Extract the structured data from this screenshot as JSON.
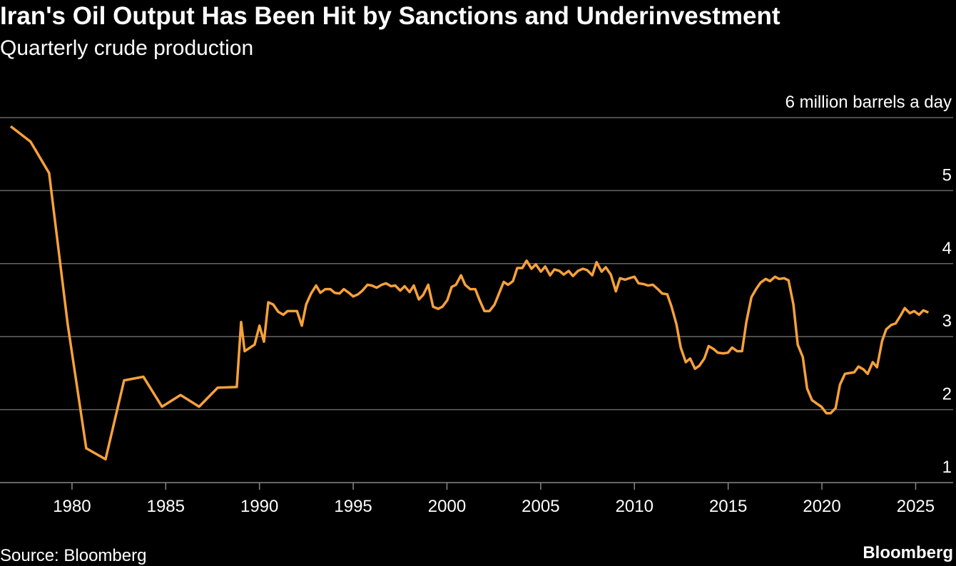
{
  "chart_data": {
    "type": "line",
    "title": "Iran's Oil Output Has Been Hit by Sanctions and Underinvestment",
    "subtitle": "Quarterly crude production",
    "source": "Source: Bloomberg",
    "brand": "Bloomberg",
    "xlim": [
      1976.16,
      2027.0
    ],
    "xticks": [
      1980,
      1985,
      1990,
      1995,
      2000,
      2005,
      2010,
      2015,
      2020,
      2025
    ],
    "ylim": [
      1,
      6
    ],
    "yticks": [
      1,
      2,
      3,
      4,
      {
        "value": 6,
        "label": "6 million barrels a day"
      },
      5
    ],
    "grid": true,
    "series": [
      {
        "name": "Crude production",
        "color": "#f7a13a",
        "x": [
          1976.73,
          1977.79,
          1978.78,
          1979.77,
          1980.76,
          1981.79,
          1982.78,
          1983.81,
          1984.8,
          1985.79,
          1986.78,
          1987.77,
          1988.79,
          1989.02,
          1989.21,
          1989.74,
          1990.0,
          1990.24,
          1990.47,
          1990.73,
          1991.0,
          1991.27,
          1991.5,
          1992.0,
          1992.26,
          1992.49,
          1992.75,
          1993.02,
          1993.25,
          1993.51,
          1993.78,
          1994.01,
          1994.27,
          1994.5,
          1994.77,
          1995.0,
          1995.26,
          1995.49,
          1995.76,
          1995.99,
          1996.25,
          1996.52,
          1996.75,
          1997.02,
          1997.24,
          1997.51,
          1997.74,
          1998.01,
          1998.23,
          1998.5,
          1998.73,
          1999.0,
          1999.26,
          1999.53,
          1999.76,
          2000.02,
          2000.25,
          2000.48,
          2000.75,
          2000.97,
          2001.24,
          2001.51,
          2001.74,
          2002.0,
          2002.27,
          2002.54,
          2002.76,
          2003.03,
          2003.26,
          2003.52,
          2003.75,
          2004.02,
          2004.25,
          2004.51,
          2004.74,
          2005.01,
          2005.24,
          2005.5,
          2005.73,
          2006.0,
          2006.23,
          2006.49,
          2006.72,
          2006.99,
          2007.26,
          2007.48,
          2007.75,
          2007.98,
          2008.25,
          2008.47,
          2008.74,
          2009.01,
          2009.23,
          2009.5,
          2009.73,
          2010.0,
          2010.22,
          2010.49,
          2010.72,
          2010.99,
          2011.25,
          2011.48,
          2011.75,
          2011.98,
          2012.24,
          2012.47,
          2012.74,
          2012.97,
          2013.23,
          2013.46,
          2013.73,
          2013.96,
          2014.22,
          2014.45,
          2014.72,
          2014.99,
          2015.21,
          2015.48,
          2015.74,
          2015.97,
          2016.24,
          2016.51,
          2016.73,
          2017.0,
          2017.23,
          2017.5,
          2017.72,
          2017.99,
          2018.22,
          2018.48,
          2018.71,
          2018.98,
          2019.21,
          2019.47,
          2019.74,
          2019.97,
          2020.24,
          2020.46,
          2020.73,
          2020.96,
          2021.23,
          2021.45,
          2021.72,
          2021.95,
          2022.22,
          2022.44,
          2022.71,
          2022.94,
          2023.21,
          2023.43,
          2023.7,
          2023.93,
          2024.2,
          2024.42,
          2024.69,
          2024.92,
          2025.18,
          2025.41,
          2025.68
        ],
        "values": [
          5.88,
          5.67,
          5.24,
          3.17,
          1.47,
          1.32,
          2.4,
          2.45,
          2.04,
          2.2,
          2.04,
          2.3,
          2.31,
          3.2,
          2.8,
          2.89,
          3.15,
          2.93,
          3.47,
          3.44,
          3.34,
          3.3,
          3.35,
          3.35,
          3.15,
          3.44,
          3.59,
          3.7,
          3.6,
          3.65,
          3.65,
          3.6,
          3.59,
          3.65,
          3.6,
          3.55,
          3.58,
          3.63,
          3.71,
          3.7,
          3.67,
          3.71,
          3.73,
          3.69,
          3.7,
          3.63,
          3.69,
          3.61,
          3.7,
          3.51,
          3.57,
          3.71,
          3.41,
          3.38,
          3.41,
          3.5,
          3.68,
          3.71,
          3.84,
          3.71,
          3.65,
          3.65,
          3.5,
          3.35,
          3.35,
          3.44,
          3.58,
          3.75,
          3.71,
          3.76,
          3.94,
          3.94,
          4.04,
          3.93,
          3.99,
          3.89,
          3.96,
          3.84,
          3.92,
          3.9,
          3.85,
          3.9,
          3.83,
          3.9,
          3.93,
          3.91,
          3.84,
          4.02,
          3.89,
          3.95,
          3.85,
          3.62,
          3.8,
          3.78,
          3.8,
          3.82,
          3.73,
          3.72,
          3.7,
          3.71,
          3.65,
          3.59,
          3.58,
          3.41,
          3.17,
          2.85,
          2.65,
          2.7,
          2.56,
          2.6,
          2.7,
          2.87,
          2.83,
          2.78,
          2.77,
          2.78,
          2.85,
          2.8,
          2.8,
          3.2,
          3.54,
          3.66,
          3.74,
          3.79,
          3.76,
          3.82,
          3.79,
          3.8,
          3.77,
          3.44,
          2.89,
          2.72,
          2.29,
          2.13,
          2.08,
          2.04,
          1.95,
          1.95,
          2.02,
          2.34,
          2.49,
          2.5,
          2.51,
          2.59,
          2.55,
          2.49,
          2.65,
          2.58,
          2.94,
          3.1,
          3.16,
          3.18,
          3.29,
          3.39,
          3.32,
          3.35,
          3.3,
          3.36,
          3.33
        ]
      }
    ]
  }
}
